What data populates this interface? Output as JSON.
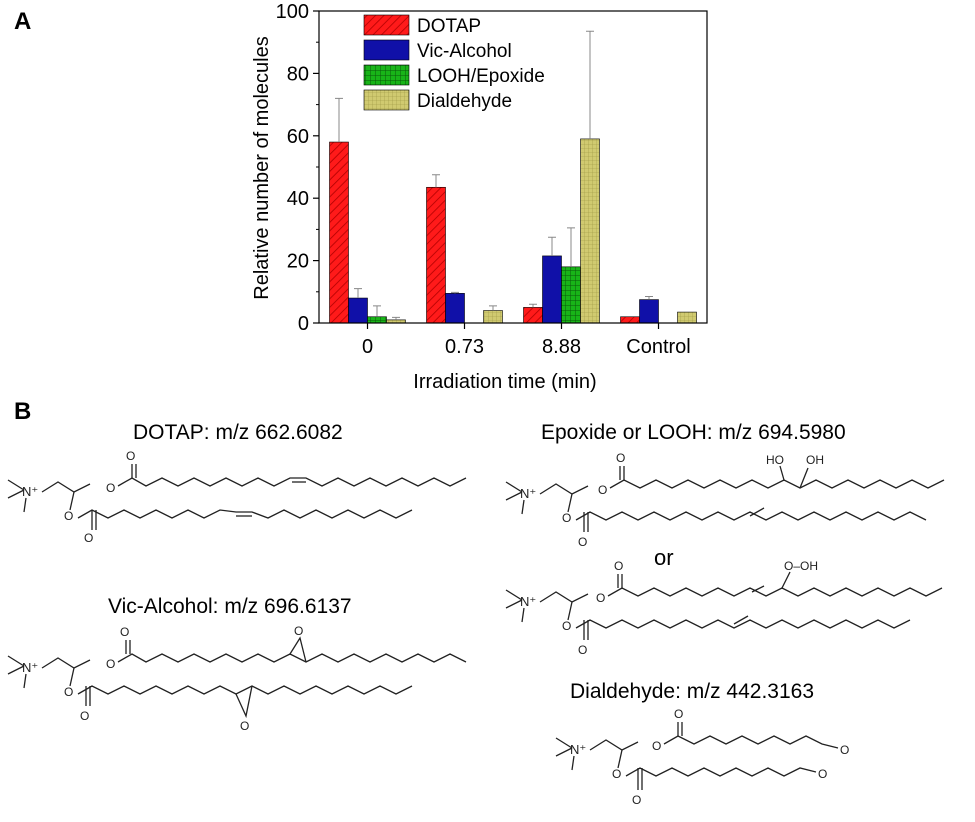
{
  "panels": {
    "a": "A",
    "b": "B"
  },
  "chart_data": {
    "type": "bar",
    "title": "",
    "xlabel": "Irradiation time (min)",
    "ylabel": "Relative number of molecules",
    "categories": [
      "0",
      "0.73",
      "8.88",
      "Control"
    ],
    "ylim": [
      0,
      100
    ],
    "yticks": [
      "0",
      "20",
      "40",
      "60",
      "80",
      "100"
    ],
    "grid": false,
    "legend_position": "top-left",
    "series": [
      {
        "name": "DOTAP",
        "color": "#ff1a1a",
        "pattern": "diagonal-hatch",
        "values": [
          58,
          43.5,
          5,
          2
        ],
        "errors": [
          14,
          4,
          1,
          0
        ]
      },
      {
        "name": "Vic-Alcohol",
        "color": "#1010a8",
        "pattern": "solid",
        "values": [
          8,
          9.5,
          21.5,
          7.5
        ],
        "errors": [
          3,
          0.3,
          6,
          1
        ]
      },
      {
        "name": "LOOH/Epoxide",
        "color": "#10a010",
        "pattern": "grid-hatch",
        "values": [
          2,
          0,
          18,
          0
        ],
        "errors": [
          3.5,
          0,
          12.5,
          0
        ]
      },
      {
        "name": "Dialdehyde",
        "color": "#c8c264",
        "pattern": "fine-grid",
        "values": [
          1,
          4,
          59,
          3.5
        ],
        "errors": [
          0.8,
          1.5,
          34.5,
          0
        ]
      }
    ]
  },
  "structures": {
    "dotap": "DOTAP:  m/z 662.6082",
    "vic_alcohol": "Vic-Alcohol: m/z 696.6137",
    "epoxide_looh": "Epoxide or LOOH:  m/z 694.5980",
    "or_text": "or",
    "dialdehyde": "Dialdehyde:  m/z 442.3163"
  },
  "atoms": {
    "n_plus": "N⁺",
    "o": "O",
    "ho": "HO",
    "oh": "OH",
    "o_oh": "O–OH"
  }
}
